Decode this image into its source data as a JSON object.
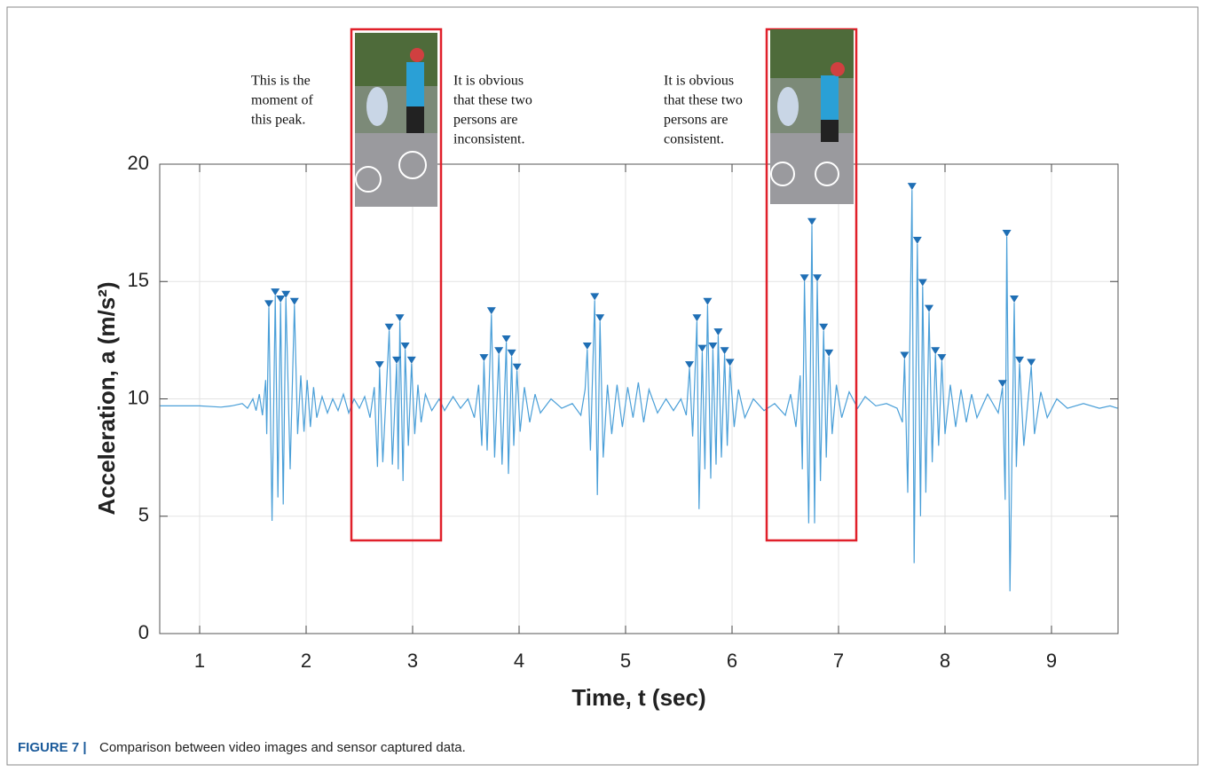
{
  "chart_data": {
    "type": "line",
    "xlabel": "Time, t (sec)",
    "ylabel": "Acceleration, a (m/s²)",
    "xlim": [
      0.625,
      9.625
    ],
    "ylim": [
      0,
      20
    ],
    "xticks": [
      1,
      2,
      3,
      4,
      5,
      6,
      7,
      8,
      9
    ],
    "yticks": [
      0,
      5,
      10,
      15,
      20
    ],
    "grid": true,
    "series": [
      {
        "color": "#4a9fd8",
        "x": [
          0.63,
          1.0,
          1.2,
          1.3,
          1.4,
          1.45,
          1.5,
          1.53,
          1.56,
          1.59,
          1.62,
          1.63,
          1.65,
          1.68,
          1.71,
          1.735,
          1.76,
          1.785,
          1.81,
          1.85,
          1.89,
          1.92,
          1.95,
          1.98,
          2.01,
          2.04,
          2.07,
          2.1,
          2.15,
          2.2,
          2.25,
          2.3,
          2.35,
          2.4,
          2.45,
          2.5,
          2.55,
          2.6,
          2.64,
          2.67,
          2.69,
          2.72,
          2.78,
          2.81,
          2.85,
          2.865,
          2.88,
          2.91,
          2.93,
          2.96,
          2.99,
          3.02,
          3.05,
          3.08,
          3.12,
          3.18,
          3.25,
          3.3,
          3.38,
          3.45,
          3.52,
          3.58,
          3.62,
          3.65,
          3.67,
          3.7,
          3.74,
          3.77,
          3.81,
          3.84,
          3.88,
          3.9,
          3.93,
          3.95,
          3.98,
          4.01,
          4.05,
          4.1,
          4.15,
          4.2,
          4.3,
          4.4,
          4.5,
          4.58,
          4.62,
          4.64,
          4.67,
          4.71,
          4.735,
          4.76,
          4.79,
          4.83,
          4.87,
          4.92,
          4.97,
          5.02,
          5.07,
          5.12,
          5.17,
          5.22,
          5.3,
          5.38,
          5.45,
          5.52,
          5.57,
          5.6,
          5.63,
          5.67,
          5.69,
          5.72,
          5.745,
          5.77,
          5.8,
          5.82,
          5.85,
          5.87,
          5.9,
          5.93,
          5.955,
          5.98,
          6.02,
          6.06,
          6.12,
          6.2,
          6.3,
          6.4,
          6.5,
          6.55,
          6.6,
          6.64,
          6.66,
          6.68,
          6.72,
          6.75,
          6.775,
          6.8,
          6.83,
          6.86,
          6.885,
          6.91,
          6.94,
          6.98,
          7.03,
          7.1,
          7.18,
          7.25,
          7.35,
          7.45,
          7.55,
          7.6,
          7.62,
          7.65,
          7.69,
          7.71,
          7.74,
          7.77,
          7.79,
          7.82,
          7.85,
          7.88,
          7.91,
          7.94,
          7.97,
          8.0,
          8.05,
          8.1,
          8.15,
          8.2,
          8.25,
          8.3,
          8.4,
          8.5,
          8.54,
          8.565,
          8.58,
          8.61,
          8.65,
          8.67,
          8.7,
          8.74,
          8.81,
          8.84,
          8.9,
          8.96,
          9.05,
          9.15,
          9.3,
          9.45,
          9.55,
          9.62
        ],
        "values": [
          9.7,
          9.7,
          9.65,
          9.7,
          9.8,
          9.6,
          10.0,
          9.5,
          10.2,
          9.3,
          10.8,
          8.5,
          13.9,
          4.8,
          14.4,
          5.8,
          14.1,
          5.5,
          14.3,
          7.0,
          14.0,
          8.5,
          11.0,
          8.6,
          10.8,
          8.8,
          10.5,
          9.2,
          10.1,
          9.4,
          10.0,
          9.5,
          10.2,
          9.4,
          10.0,
          9.6,
          10.1,
          9.2,
          10.5,
          7.1,
          11.3,
          7.3,
          12.9,
          7.2,
          11.5,
          7.0,
          13.3,
          6.5,
          12.1,
          8.0,
          11.5,
          8.5,
          10.6,
          9.0,
          10.2,
          9.5,
          10.0,
          9.5,
          10.1,
          9.6,
          10.0,
          9.2,
          10.6,
          8.0,
          11.6,
          7.8,
          13.6,
          7.5,
          11.9,
          7.2,
          12.4,
          6.8,
          11.8,
          8.0,
          11.2,
          8.6,
          10.5,
          9.0,
          10.2,
          9.4,
          10.0,
          9.6,
          9.8,
          9.3,
          10.4,
          12.1,
          7.8,
          14.2,
          5.9,
          13.3,
          7.5,
          10.6,
          8.5,
          10.6,
          8.8,
          10.5,
          9.2,
          10.7,
          9.0,
          10.4,
          9.4,
          10.0,
          9.5,
          10.0,
          9.3,
          11.3,
          8.4,
          13.3,
          5.3,
          12.0,
          7.0,
          14.0,
          6.6,
          12.1,
          7.2,
          12.7,
          7.5,
          11.9,
          8.0,
          11.4,
          8.8,
          10.4,
          9.2,
          10.0,
          9.5,
          9.8,
          9.3,
          10.2,
          8.8,
          11.0,
          7.0,
          15.0,
          4.7,
          17.4,
          4.7,
          15.0,
          6.5,
          12.9,
          7.5,
          11.8,
          8.5,
          10.6,
          9.2,
          10.3,
          9.6,
          10.1,
          9.7,
          9.8,
          9.6,
          9.0,
          11.7,
          6.0,
          18.9,
          3.0,
          16.6,
          5.0,
          14.8,
          6.0,
          13.7,
          7.3,
          11.9,
          8.0,
          11.6,
          8.5,
          10.6,
          8.8,
          10.4,
          9.0,
          10.2,
          9.2,
          10.2,
          9.4,
          10.5,
          5.7,
          16.9,
          1.8,
          14.1,
          7.1,
          11.5,
          8.0,
          11.4,
          8.5,
          10.3,
          9.2,
          10.0,
          9.6,
          9.8,
          9.6,
          9.7,
          9.6
        ]
      },
      {
        "color": "#1f6fb5",
        "marker": "triangle-down",
        "x": [
          1.65,
          1.71,
          1.76,
          1.81,
          1.89,
          2.69,
          2.78,
          2.85,
          2.88,
          2.93,
          2.99,
          3.67,
          3.74,
          3.81,
          3.88,
          3.93,
          3.98,
          4.64,
          4.71,
          4.76,
          5.6,
          5.67,
          5.72,
          5.77,
          5.82,
          5.87,
          5.93,
          5.98,
          6.68,
          6.75,
          6.8,
          6.86,
          6.91,
          7.62,
          7.69,
          7.74,
          7.79,
          7.85,
          7.91,
          7.97,
          8.54,
          8.58,
          8.65,
          8.7,
          8.81
        ],
        "values": [
          13.9,
          14.4,
          14.1,
          14.3,
          14.0,
          11.3,
          12.9,
          11.5,
          13.3,
          12.1,
          11.5,
          11.6,
          13.6,
          11.9,
          12.4,
          11.8,
          11.2,
          12.1,
          14.2,
          13.3,
          11.3,
          13.3,
          12.0,
          14.0,
          12.1,
          12.7,
          11.9,
          11.4,
          15.0,
          17.4,
          15.0,
          12.9,
          11.8,
          11.7,
          18.9,
          16.6,
          14.8,
          13.7,
          11.9,
          11.6,
          10.5,
          16.9,
          14.1,
          11.5,
          11.4
        ]
      }
    ],
    "annotations": [
      [
        "This is the",
        "moment of",
        "this peak."
      ],
      [
        "It is obvious",
        "that these two",
        "persons are",
        "inconsistent."
      ],
      [
        "It is obvious",
        "that these two",
        "persons are",
        "consistent."
      ]
    ],
    "caption": {
      "label": "FIGURE 7 |",
      "text": "Comparison between video images and sensor captured data."
    }
  }
}
